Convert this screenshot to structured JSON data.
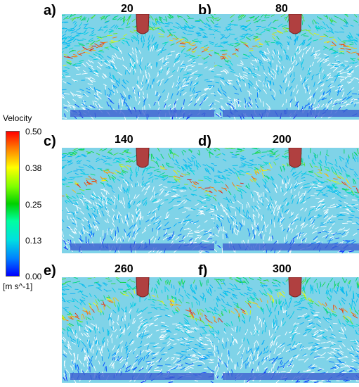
{
  "panels": [
    {
      "label": "a)",
      "time": "20"
    },
    {
      "label": "b)",
      "time": "80"
    },
    {
      "label": "c)",
      "time": "140"
    },
    {
      "label": "d)",
      "time": "200"
    },
    {
      "label": "e)",
      "time": "260"
    },
    {
      "label": "f)",
      "time": "300"
    }
  ],
  "legend": {
    "title": "Velocity",
    "unit": "[m s^-1]",
    "ticks": [
      "0.50",
      "0.38",
      "0.25",
      "0.13",
      "0.00"
    ],
    "colors": [
      "#ff0000",
      "#ffff00",
      "#00d000",
      "#00e0e0",
      "#0000ff"
    ]
  }
}
